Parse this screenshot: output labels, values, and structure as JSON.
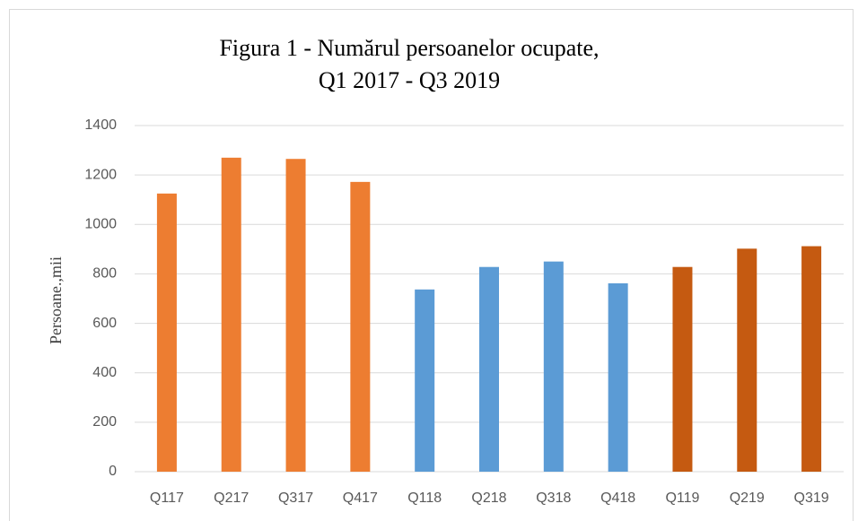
{
  "chart_data": {
    "type": "bar",
    "title": [
      "Figura 1 - Numărul persoanelor ocupate,",
      "Q1 2017 - Q3 2019"
    ],
    "y_label": "Persoane.,mii",
    "categories": [
      "Q117",
      "Q217",
      "Q317",
      "Q417",
      "Q118",
      "Q218",
      "Q318",
      "Q418",
      "Q119",
      "Q219",
      "Q319"
    ],
    "values": [
      1125,
      1270,
      1265,
      1172,
      737,
      828,
      850,
      762,
      828,
      902,
      912
    ],
    "colors": [
      "#ed7d31",
      "#ed7d31",
      "#ed7d31",
      "#ed7d31",
      "#5b9bd5",
      "#5b9bd5",
      "#5b9bd5",
      "#5b9bd5",
      "#c55a11",
      "#c55a11",
      "#c55a11"
    ],
    "ylim": [
      0,
      1400
    ],
    "yticks": [
      0,
      200,
      400,
      600,
      800,
      1000,
      1200,
      1400
    ],
    "grid": true
  }
}
